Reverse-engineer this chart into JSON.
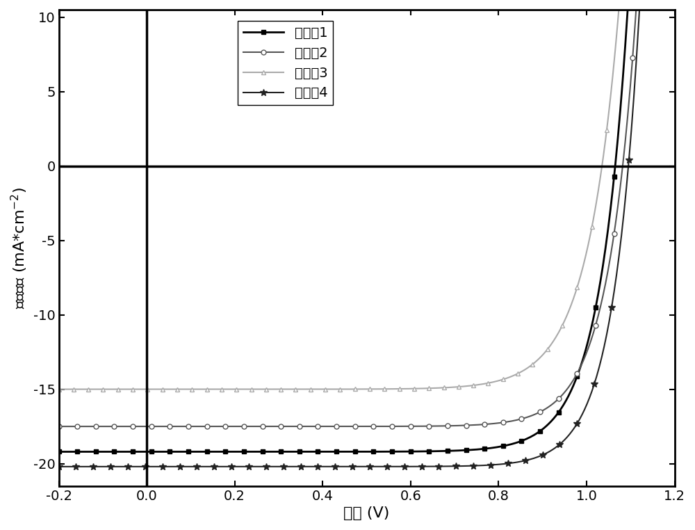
{
  "title": "",
  "xlabel": "电压 (V)",
  "ylabel": "电流密度 (mA*cm$^{-2}$)",
  "xlim": [
    -0.2,
    1.2
  ],
  "ylim": [
    -21.5,
    10.5
  ],
  "xticks": [
    -0.2,
    0.0,
    0.2,
    0.4,
    0.6,
    0.8,
    1.0,
    1.2
  ],
  "yticks": [
    -20,
    -15,
    -10,
    -5,
    0,
    5,
    10
  ],
  "legend_labels": [
    "实施例1",
    "实施例2",
    "实施例3",
    "实施例4"
  ],
  "series": [
    {
      "label": "实施例1",
      "color": "#000000",
      "marker": "s",
      "mfc": "#000000",
      "jsc": -19.2,
      "voc": 1.065,
      "vt": 0.065,
      "ms": 5,
      "me": 15,
      "lw": 2.0
    },
    {
      "label": "实施例2",
      "color": "#555555",
      "marker": "o",
      "mfc": "#ffffff",
      "jsc": -17.5,
      "voc": 1.082,
      "vt": 0.065,
      "ms": 5,
      "me": 15,
      "lw": 1.5
    },
    {
      "label": "实施例3",
      "color": "#aaaaaa",
      "marker": "^",
      "mfc": "#ffffff",
      "jsc": -15.0,
      "voc": 1.035,
      "vt": 0.072,
      "ms": 5,
      "me": 12,
      "lw": 1.5
    },
    {
      "label": "实施例4",
      "color": "#222222",
      "marker": "*",
      "mfc": "#222222",
      "jsc": -20.2,
      "voc": 1.095,
      "vt": 0.06,
      "ms": 7,
      "me": 14,
      "lw": 1.5
    }
  ],
  "background_color": "#ffffff",
  "axes_linewidth": 2.0,
  "tick_fontsize": 14,
  "label_fontsize": 16,
  "legend_fontsize": 14
}
